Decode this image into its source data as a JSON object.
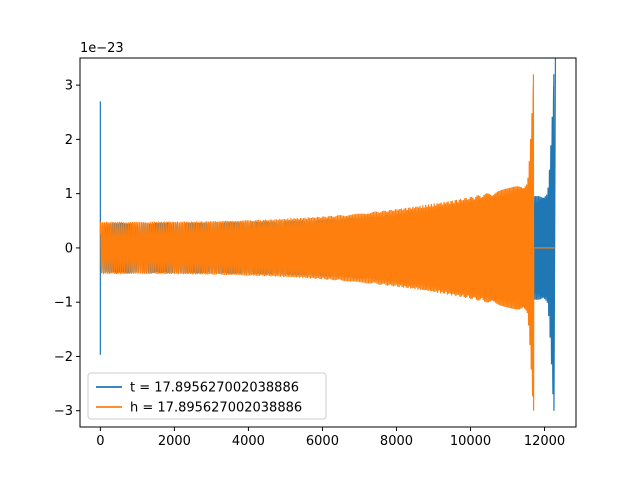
{
  "chart_data": {
    "type": "line",
    "title": "",
    "xlabel": "",
    "ylabel": "",
    "xlim": [
      -550,
      12850
    ],
    "ylim": [
      -3.3,
      3.5
    ],
    "y_offset_label": "1e−23",
    "x_ticks": [
      0,
      2000,
      4000,
      6000,
      8000,
      10000,
      12000
    ],
    "x_tick_labels": [
      "0",
      "2000",
      "4000",
      "6000",
      "8000",
      "10000",
      "12000"
    ],
    "y_ticks": [
      -3,
      -2,
      -1,
      0,
      1,
      2,
      3
    ],
    "y_tick_labels": [
      "−3",
      "−2",
      "−1",
      "0",
      "1",
      "2",
      "3"
    ],
    "grid": false,
    "legend_position": "lower-left",
    "series": [
      {
        "name": "t = 17.895627002038886",
        "color": "#1f77b4",
        "start_spike": {
          "x": 0,
          "ymax": 2.7,
          "ymin": -1.97
        },
        "x_start": 0,
        "x_end": 12300,
        "merger_x": 12250,
        "envelope_start": 0.45,
        "envelope_near_merger": 1.0,
        "peak": 3.2,
        "trough": -3.0
      },
      {
        "name": "h = 17.895627002038886",
        "color": "#ff7f0e",
        "x_start": 0,
        "x_end": 12300,
        "merger_x": 11700,
        "envelope_start": 0.47,
        "envelope_near_merger": 1.2,
        "peak": 3.2,
        "trough": -3.0,
        "post_merger_value": 0
      }
    ]
  }
}
